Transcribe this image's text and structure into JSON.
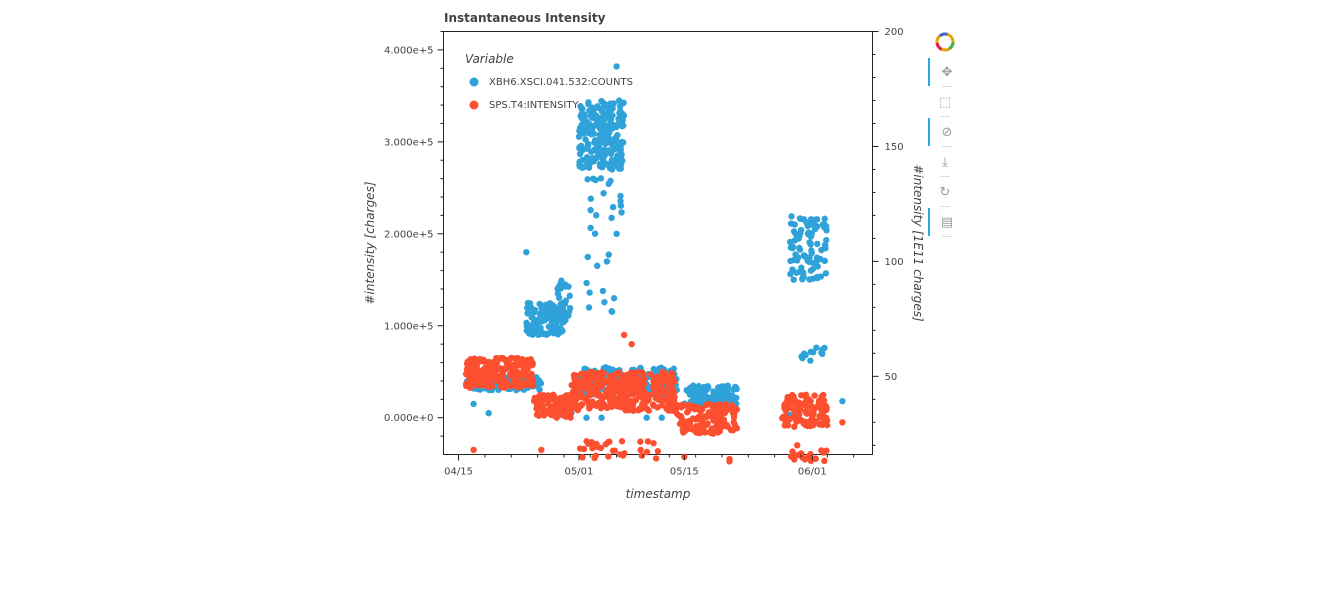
{
  "chart_data": {
    "type": "scatter",
    "title": "Instantaneous Intensity",
    "xlabel": "timestamp",
    "ylabel": "#intensity [charges]",
    "y2label": "#intensity [1E11 charges]",
    "x_tick_labels": [
      "04/15",
      "05/01",
      "05/15",
      "06/01"
    ],
    "y_tick_labels": [
      "0.000e+0",
      "1.000e+5",
      "2.000e+5",
      "3.000e+5",
      "4.000e+5"
    ],
    "y2_tick_labels": [
      "50",
      "100",
      "150",
      "200"
    ],
    "xlim": [
      "2023-04-13",
      "2023-06-09"
    ],
    "ylim": [
      -40000,
      420000
    ],
    "y2lim": [
      16,
      200
    ],
    "legend": {
      "title": "Variable",
      "placement": "top-left",
      "entries": [
        "XBH6.XSCI.041.532:COUNTS",
        "SPS.T4:INTENSITY"
      ]
    },
    "series": [
      {
        "name": "XBH6.XSCI.041.532:COUNTS",
        "color": "#30a2da",
        "axis": "left",
        "clusters": [
          {
            "x0": "2023-04-16",
            "x1": "2023-04-26",
            "ymin": 30000,
            "ymax": 45000,
            "n": 140
          },
          {
            "x0": "2023-04-24",
            "x1": "2023-04-29",
            "ymin": 90000,
            "ymax": 125000,
            "n": 110
          },
          {
            "x0": "2023-04-28",
            "x1": "2023-04-30",
            "ymin": 105000,
            "ymax": 150000,
            "n": 25
          },
          {
            "x0": "2023-05-01",
            "x1": "2023-05-07",
            "ymin": 270000,
            "ymax": 345000,
            "n": 230
          },
          {
            "x0": "2023-05-02",
            "x1": "2023-05-07",
            "ymin": 200000,
            "ymax": 270000,
            "n": 18
          },
          {
            "x0": "2023-05-02",
            "x1": "2023-05-07",
            "ymin": 110000,
            "ymax": 180000,
            "n": 12
          },
          {
            "x0": "2023-05-01",
            "x1": "2023-05-14",
            "ymin": 25000,
            "ymax": 55000,
            "n": 180
          },
          {
            "x0": "2023-05-15",
            "x1": "2023-05-22",
            "ymin": 15000,
            "ymax": 35000,
            "n": 110
          },
          {
            "x0": "2023-05-29",
            "x1": "2023-06-03",
            "ymin": 150000,
            "ymax": 220000,
            "n": 90
          },
          {
            "x0": "2023-05-30",
            "x1": "2023-06-03",
            "ymin": 60000,
            "ymax": 80000,
            "n": 12
          }
        ],
        "points": [
          {
            "x": "2023-05-06",
            "y": 382000
          },
          {
            "x": "2023-04-24",
            "y": 180000
          },
          {
            "x": "2023-05-06",
            "y": 200000
          },
          {
            "x": "2023-04-17",
            "y": 15000
          },
          {
            "x": "2023-04-19",
            "y": 5000
          },
          {
            "x": "2023-05-02",
            "y": 0
          },
          {
            "x": "2023-05-04",
            "y": 0
          },
          {
            "x": "2023-05-10",
            "y": 0
          },
          {
            "x": "2023-05-12",
            "y": 0
          },
          {
            "x": "2023-05-21",
            "y": 10000
          },
          {
            "x": "2023-05-29",
            "y": 3000
          },
          {
            "x": "2023-06-05",
            "y": 18000
          },
          {
            "x": "2023-04-30",
            "y": 5000
          }
        ]
      },
      {
        "name": "SPS.T4:INTENSITY",
        "color": "#fc4f30",
        "axis": "right",
        "clusters": [
          {
            "x0": "2023-04-16",
            "x1": "2023-04-25",
            "ymin": 45,
            "ymax": 58,
            "n": 220
          },
          {
            "x0": "2023-04-25",
            "x1": "2023-04-30",
            "ymin": 32,
            "ymax": 42,
            "n": 110
          },
          {
            "x0": "2023-04-30",
            "x1": "2023-05-14",
            "ymin": 35,
            "ymax": 52,
            "n": 330
          },
          {
            "x0": "2023-05-14",
            "x1": "2023-05-22",
            "ymin": 25,
            "ymax": 38,
            "n": 130
          },
          {
            "x0": "2023-05-28",
            "x1": "2023-06-03",
            "ymin": 28,
            "ymax": 42,
            "n": 110
          },
          {
            "x0": "2023-05-01",
            "x1": "2023-05-12",
            "ymin": 14,
            "ymax": 22,
            "n": 30
          },
          {
            "x0": "2023-05-29",
            "x1": "2023-06-03",
            "ymin": 13,
            "ymax": 18,
            "n": 18
          }
        ],
        "points": [
          {
            "x": "2023-05-07",
            "y": 68
          },
          {
            "x": "2023-05-08",
            "y": 64
          },
          {
            "x": "2023-04-17",
            "y": 18
          },
          {
            "x": "2023-04-26",
            "y": 18
          },
          {
            "x": "2023-05-21",
            "y": 14
          },
          {
            "x": "2023-05-21",
            "y": 13
          },
          {
            "x": "2023-06-05",
            "y": 30
          },
          {
            "x": "2023-05-30",
            "y": 20
          },
          {
            "x": "2023-05-15",
            "y": 15
          }
        ]
      }
    ]
  },
  "toolbar": {
    "tools": [
      {
        "name": "bokeh-logo-icon",
        "glyph": "●",
        "active": false
      },
      {
        "name": "pan-icon",
        "glyph": "✥",
        "active": true
      },
      {
        "name": "box-zoom-icon",
        "glyph": "⬚",
        "active": false
      },
      {
        "name": "wheel-zoom-icon",
        "glyph": "⊘",
        "active": true
      },
      {
        "name": "save-icon",
        "glyph": "⤓",
        "active": false
      },
      {
        "name": "reset-icon",
        "glyph": "↻",
        "active": false
      },
      {
        "name": "hover-icon",
        "glyph": "▤",
        "active": true
      }
    ]
  }
}
